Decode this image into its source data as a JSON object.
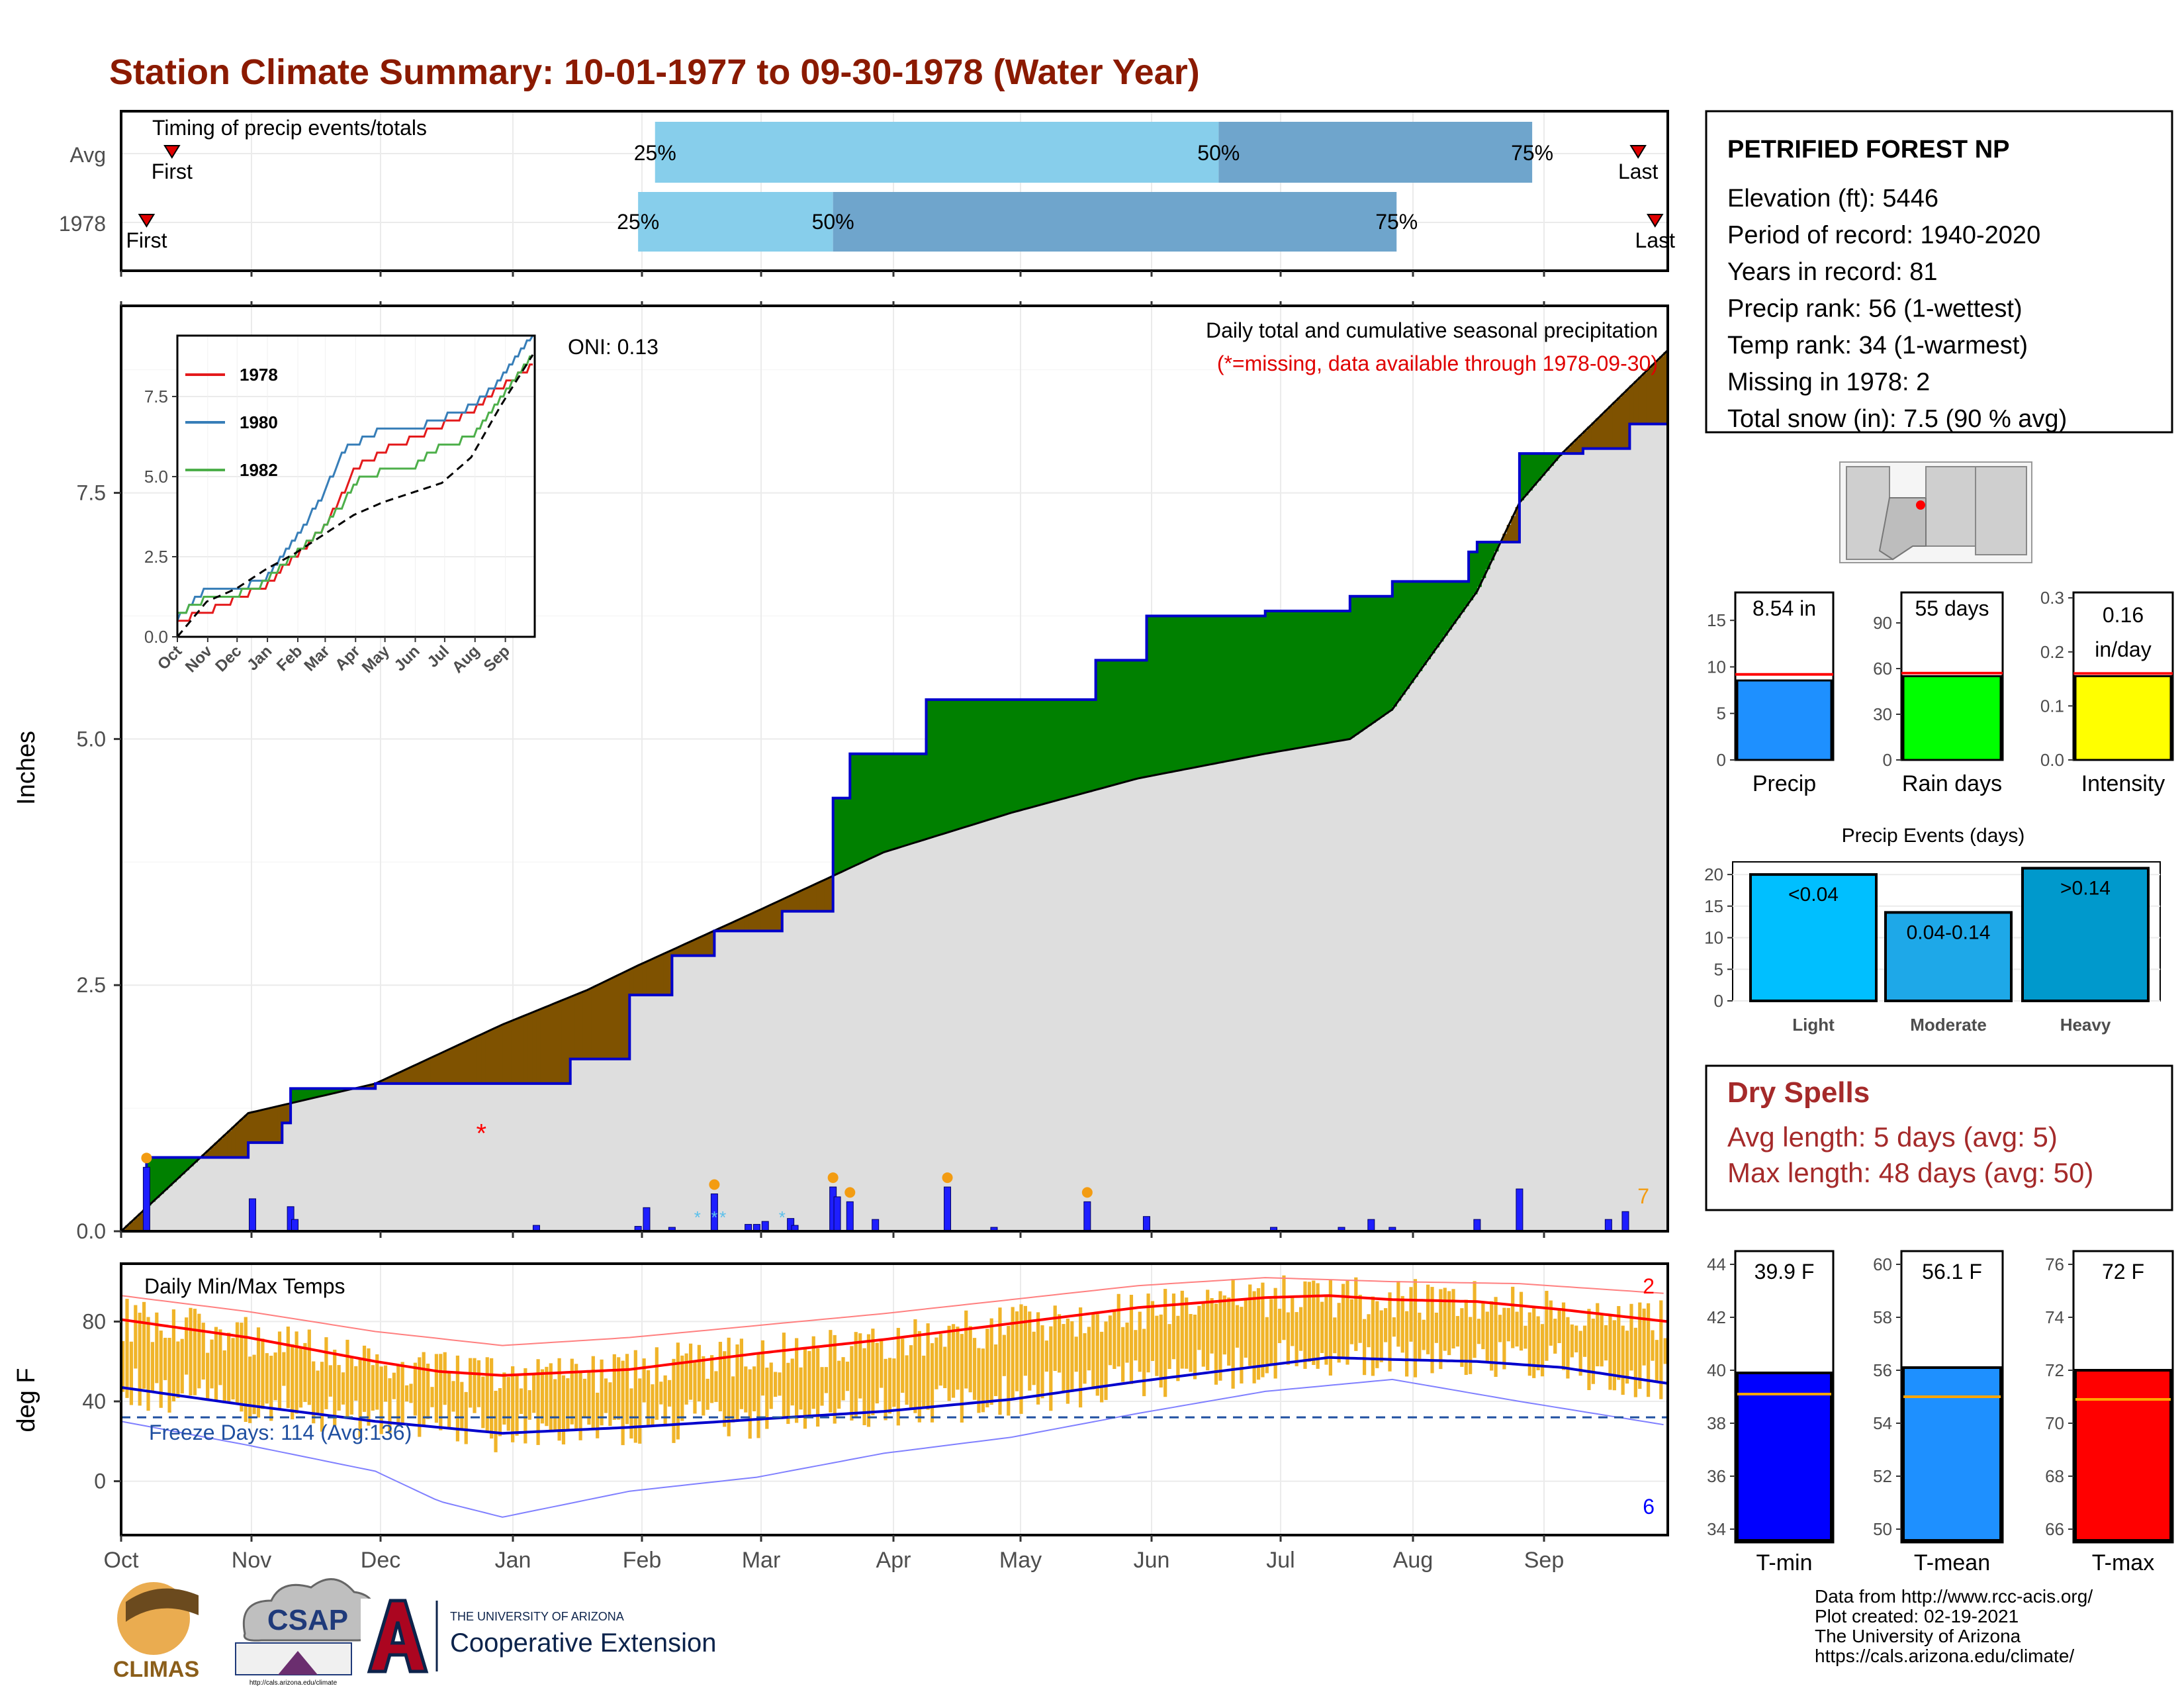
{
  "page_title": "Station Climate Summary: 10-01-1977 to 09-30-1978 (Water Year)",
  "colors": {
    "title": "#8B1A00",
    "above_avg": "#008000",
    "below_avg": "#7F5200",
    "cumulative": "#0000CC",
    "avg_fill": "#DEDEDE",
    "bar_light": "#87CEEB",
    "bar_dark": "#6FA5CC",
    "temp_band": "#F0B429",
    "temp_max_avg": "#FF0000",
    "temp_min_avg": "#0000CC",
    "dry_spells": "#A52A2A"
  },
  "timing_panel": {
    "title": "Timing of precip events/totals",
    "rows": [
      {
        "label": "Avg",
        "first_label": "First",
        "last_label": "Last",
        "first_day": 12,
        "last_day": 358,
        "p25": 126,
        "p50": 259,
        "p75": 333,
        "p25_label": "25%",
        "p50_label": "50%",
        "p75_label": "75%"
      },
      {
        "label": "1978",
        "first_label": "First",
        "last_label": "Last",
        "first_day": 6,
        "last_day": 362,
        "p25": 122,
        "p50": 168,
        "p75": 301,
        "p25_label": "25%",
        "p50_label": "50%",
        "p75_label": "75%"
      }
    ]
  },
  "precip_panel": {
    "ylabel": "Inches",
    "ytick_labels": [
      "0.0",
      "2.5",
      "5.0",
      "7.5"
    ],
    "oni_label": "ONI: 0.13",
    "subtitle": "Daily total and cumulative seasonal precipitation",
    "missing_note": "(*=missing, data available through 1978-09-30)",
    "missing_count": "7"
  },
  "inset": {
    "legend": [
      {
        "name": "1978",
        "color": "#E41A1C"
      },
      {
        "name": "1980",
        "color": "#377EB8"
      },
      {
        "name": "1982",
        "color": "#4DAF4A"
      }
    ],
    "ytick_labels": [
      "0.0",
      "2.5",
      "5.0",
      "7.5"
    ],
    "xtick_labels": [
      "Oct",
      "Nov",
      "Dec",
      "Jan",
      "Feb",
      "Mar",
      "Apr",
      "May",
      "Jun",
      "Jul",
      "Aug",
      "Sep"
    ]
  },
  "temp_panel": {
    "title": "Daily Min/Max Temps",
    "ylabel": "deg F",
    "ytick_labels": [
      "0",
      "40",
      "80"
    ],
    "freeze_label": "Freeze Days: 114 (Avg:136)",
    "missing_max": "2",
    "missing_min": "6"
  },
  "month_labels": [
    "Oct",
    "Nov",
    "Dec",
    "Jan",
    "Feb",
    "Mar",
    "Apr",
    "May",
    "Jun",
    "Jul",
    "Aug",
    "Sep"
  ],
  "station": {
    "name": "PETRIFIED FOREST NP",
    "lines": [
      "Elevation (ft): 5446",
      "Period of record: 1940-2020",
      "Years in record: 81",
      "Precip rank: 56 (1-wettest)",
      "Temp rank: 34 (1-warmest)",
      "Missing in 1978: 2",
      "Total snow (in): 7.5 (90 % avg)"
    ]
  },
  "mini_bars": [
    {
      "label": "Precip",
      "value_label": "8.54 in",
      "value": 8.54,
      "avg": 9.2,
      "ymax": 18,
      "ticks": [
        "0",
        "5",
        "10",
        "15"
      ],
      "tick_values": [
        0,
        5,
        10,
        15
      ],
      "color": "#1E90FF"
    },
    {
      "label": "Rain days",
      "value_label": "55 days",
      "value": 55,
      "avg": 57,
      "ymax": 110,
      "ticks": [
        "0",
        "30",
        "60",
        "90"
      ],
      "tick_values": [
        0,
        30,
        60,
        90
      ],
      "color": "#00FF00"
    },
    {
      "label": "Intensity",
      "value_label": "0.16",
      "value_label2": "in/day",
      "value": 0.155,
      "avg": 0.16,
      "ymax": 0.31,
      "ticks": [
        "0.0",
        "0.1",
        "0.2",
        "0.3"
      ],
      "tick_values": [
        0,
        0.1,
        0.2,
        0.3
      ],
      "color": "#FFFF00"
    }
  ],
  "events": {
    "title": "Precip Events (days)",
    "ticks": [
      "0",
      "5",
      "10",
      "15",
      "20"
    ],
    "bars": [
      {
        "category": "Light",
        "range_label": "<0.04",
        "value": 20,
        "color": "#00BFFF"
      },
      {
        "category": "Moderate",
        "range_label": "0.04-0.14",
        "value": 14,
        "color": "#1EA8E8"
      },
      {
        "category": "Heavy",
        "range_label": ">0.14",
        "value": 21,
        "color": "#0099CC"
      }
    ]
  },
  "dry_spells": {
    "title": "Dry Spells",
    "avg_line": "Avg length: 5 days (avg: 5)",
    "max_line": "Max length: 48 days (avg: 50)"
  },
  "temp_bars": [
    {
      "label": "T-min",
      "value_label": "39.9 F",
      "value": 39.9,
      "avg": 39.1,
      "ymin": 33.5,
      "ymax": 44.5,
      "ticks": [
        "34",
        "36",
        "38",
        "40",
        "42",
        "44"
      ],
      "tick_values": [
        34,
        36,
        38,
        40,
        42,
        44
      ],
      "color": "#0000FF"
    },
    {
      "label": "T-mean",
      "value_label": "56.1 F",
      "value": 56.1,
      "avg": 55.0,
      "ymin": 49.5,
      "ymax": 60.5,
      "ticks": [
        "50",
        "52",
        "54",
        "56",
        "58",
        "60"
      ],
      "tick_values": [
        50,
        52,
        54,
        56,
        58,
        60
      ],
      "color": "#1E90FF"
    },
    {
      "label": "T-max",
      "value_label": "72 F",
      "value": 72.0,
      "avg": 70.9,
      "ymin": 65.5,
      "ymax": 76.5,
      "ticks": [
        "66",
        "68",
        "70",
        "72",
        "74",
        "76"
      ],
      "tick_values": [
        66,
        68,
        70,
        72,
        74,
        76
      ],
      "color": "#FF0000"
    }
  ],
  "footer": {
    "lines": [
      "Data from http://www.rcc-acis.org/",
      "Plot created: 02-19-2021",
      "The University of Arizona",
      "https://cals.arizona.edu/climate/"
    ],
    "logo_climas": "CLIMAS",
    "logo_csap": "CSAP",
    "csap_url": "http://cals.arizona.edu/climate",
    "ua_small": "THE UNIVERSITY OF ARIZONA",
    "ua_big": "Cooperative Extension"
  },
  "chart_data": [
    {
      "type": "area",
      "title": "Daily total and cumulative seasonal precipitation",
      "ylabel": "Inches",
      "ylim": [
        0,
        9.4
      ],
      "x_unit": "day of water year (1 = Oct 1)",
      "avg_cumulative": {
        "x": [
          0,
          30,
          60,
          90,
          110,
          122,
          150,
          180,
          210,
          240,
          270,
          290,
          300,
          320,
          330,
          340,
          365
        ],
        "y": [
          0,
          1.2,
          1.5,
          2.1,
          2.45,
          2.7,
          3.25,
          3.85,
          4.25,
          4.6,
          4.85,
          5.0,
          5.3,
          6.5,
          7.4,
          7.9,
          8.95
        ]
      },
      "observed_cumulative": {
        "x": [
          0,
          6,
          28,
          30,
          38,
          40,
          60,
          100,
          106,
          120,
          130,
          140,
          156,
          164,
          168,
          172,
          190,
          200,
          230,
          242,
          250,
          270,
          290,
          300,
          318,
          320,
          330,
          345,
          356,
          365
        ],
        "y": [
          0,
          0.75,
          0.75,
          0.9,
          1.1,
          1.45,
          1.5,
          1.5,
          1.75,
          2.4,
          2.8,
          3.05,
          3.25,
          3.25,
          4.4,
          4.85,
          5.4,
          5.4,
          5.8,
          6.25,
          6.25,
          6.3,
          6.45,
          6.6,
          6.9,
          7.0,
          7.9,
          7.95,
          8.2,
          8.54
        ]
      },
      "daily_precip": {
        "day": [
          6,
          31,
          40,
          41,
          98,
          122,
          124,
          130,
          140,
          148,
          150,
          152,
          158,
          159,
          168,
          169,
          172,
          178,
          195,
          206,
          228,
          242,
          272,
          288,
          295,
          300,
          320,
          330,
          351,
          355
        ],
        "inches": [
          0.65,
          0.33,
          0.25,
          0.12,
          0.06,
          0.05,
          0.24,
          0.04,
          0.38,
          0.07,
          0.07,
          0.1,
          0.13,
          0.06,
          0.45,
          0.35,
          0.3,
          0.12,
          0.45,
          0.04,
          0.3,
          0.15,
          0.04,
          0.04,
          0.12,
          0.04,
          0.12,
          0.43,
          0.12,
          0.2
        ]
      },
      "snow_days": [
        136,
        140,
        142,
        156
      ],
      "missing_days": [
        85
      ]
    },
    {
      "type": "line",
      "title": "",
      "ylabel": "",
      "xtick_labels": [
        "Oct",
        "Nov",
        "Dec",
        "Jan",
        "Feb",
        "Mar",
        "Apr",
        "May",
        "Jun",
        "Jul",
        "Aug",
        "Sep"
      ],
      "ylim": [
        0,
        9.4
      ],
      "series": [
        {
          "name": "1978",
          "color": "#E41A1C",
          "x": [
            0,
            30,
            60,
            90,
            120,
            150,
            170,
            180,
            210,
            240,
            270,
            300,
            330,
            365
          ],
          "y": [
            0.5,
            0.75,
            1.2,
            1.6,
            2.5,
            3.4,
            4.5,
            5.2,
            5.8,
            6.2,
            6.6,
            7.0,
            7.8,
            8.54
          ]
        },
        {
          "name": "1980",
          "color": "#377EB8",
          "x": [
            0,
            30,
            60,
            90,
            120,
            150,
            170,
            180,
            210,
            240,
            270,
            300,
            330,
            365
          ],
          "y": [
            0.6,
            1.5,
            1.5,
            1.8,
            3.0,
            4.5,
            5.8,
            6.0,
            6.5,
            6.5,
            6.8,
            7.2,
            8.0,
            9.5
          ]
        },
        {
          "name": "1982",
          "color": "#4DAF4A",
          "x": [
            0,
            30,
            60,
            90,
            120,
            150,
            170,
            180,
            210,
            240,
            270,
            300,
            330,
            365
          ],
          "y": [
            0.7,
            1.2,
            1.3,
            1.7,
            2.6,
            3.4,
            4.2,
            4.8,
            5.2,
            5.3,
            6.0,
            6.2,
            7.5,
            8.9
          ]
        },
        {
          "name": "",
          "color": "#000000",
          "x": [
            0,
            30,
            60,
            90,
            120,
            150,
            180,
            210,
            240,
            270,
            300,
            330,
            365
          ],
          "y": [
            0,
            1.1,
            1.5,
            2.1,
            2.6,
            3.2,
            3.8,
            4.2,
            4.5,
            4.8,
            5.6,
            7.2,
            8.9
          ]
        }
      ]
    },
    {
      "type": "bar",
      "title": "Daily Min/Max Temps",
      "ylabel": "deg F",
      "ylim": [
        -27,
        109
      ],
      "avg_max": {
        "x": [
          0,
          30,
          60,
          75,
          90,
          120,
          150,
          180,
          210,
          240,
          270,
          285,
          300,
          320,
          340,
          365
        ],
        "y": [
          81,
          72,
          60,
          55,
          53,
          56,
          64,
          71,
          79,
          87,
          92,
          93,
          91,
          90,
          86,
          80
        ]
      },
      "avg_min": {
        "x": [
          0,
          30,
          60,
          75,
          90,
          120,
          150,
          180,
          210,
          240,
          270,
          285,
          300,
          320,
          340,
          365
        ],
        "y": [
          47,
          38,
          30,
          27,
          24,
          27,
          31,
          35,
          41,
          50,
          58,
          62,
          61,
          60,
          57,
          49
        ]
      },
      "record_max": {
        "x": [
          0,
          30,
          60,
          90,
          120,
          150,
          180,
          210,
          240,
          270,
          300,
          330,
          365
        ],
        "y": [
          93,
          85,
          75,
          68,
          72,
          78,
          84,
          91,
          98,
          102,
          100,
          99,
          94
        ]
      },
      "record_min": {
        "x": [
          0,
          30,
          60,
          75,
          90,
          120,
          150,
          180,
          210,
          240,
          270,
          300,
          330,
          365
        ],
        "y": [
          30,
          18,
          5,
          -10,
          -18,
          -5,
          2,
          14,
          22,
          34,
          45,
          51,
          40,
          28
        ]
      },
      "freeze_threshold": 32
    },
    {
      "type": "bar",
      "title": "Precip Events (days)",
      "categories": [
        "Light",
        "Moderate",
        "Heavy"
      ],
      "values": [
        20,
        14,
        21
      ],
      "ylim": [
        0,
        22
      ]
    }
  ]
}
